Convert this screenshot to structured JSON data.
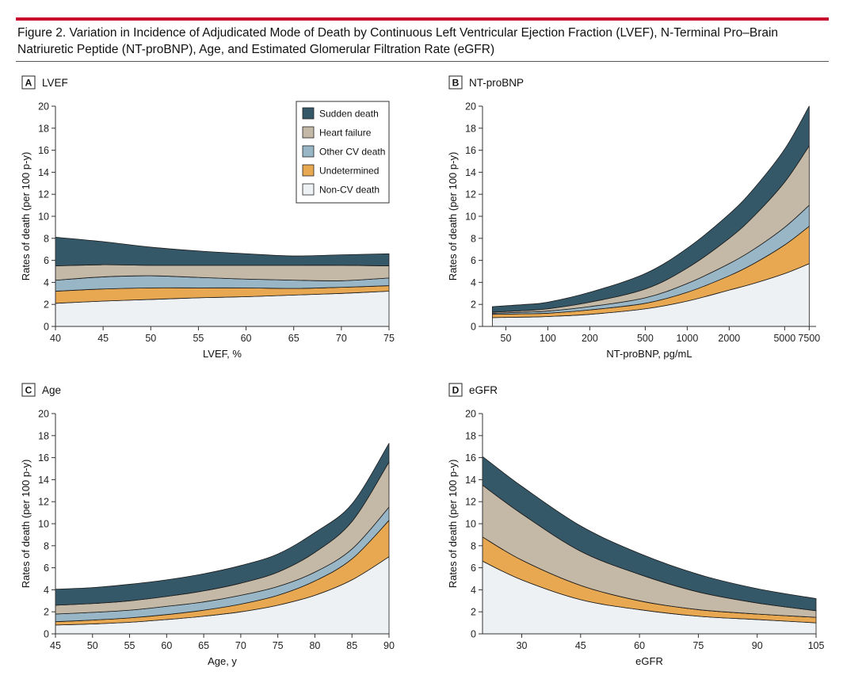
{
  "figure": {
    "caption": "Figure 2. Variation in Incidence of Adjudicated Mode of Death by Continuous Left Ventricular Ejection Fraction (LVEF), N-Terminal Pro–Brain Natriuretic Peptide (NT-proBNP), Age, and Estimated Glomerular Filtration Rate (eGFR)",
    "accent_color": "#c8102e"
  },
  "legend": [
    {
      "label": "Sudden death",
      "color": "#355868"
    },
    {
      "label": "Heart failure",
      "color": "#c4b8a6"
    },
    {
      "label": "Other CV death",
      "color": "#98b6c6"
    },
    {
      "label": "Undetermined",
      "color": "#e8a851"
    },
    {
      "label": "Non-CV death",
      "color": "#eef1f4"
    }
  ],
  "chart_data": [
    {
      "type": "area",
      "panel_letter": "A",
      "title": "LVEF",
      "xlabel": "LVEF, %",
      "ylabel": "Rates of death (per 100 p-y)",
      "xlim": [
        40,
        75
      ],
      "ylim": [
        0,
        20
      ],
      "xticks": [
        40,
        45,
        50,
        55,
        60,
        65,
        70,
        75
      ],
      "yticks": [
        0,
        2,
        4,
        6,
        8,
        10,
        12,
        14,
        16,
        18,
        20
      ],
      "x": [
        40,
        45,
        50,
        55,
        60,
        65,
        70,
        75
      ],
      "series": [
        {
          "name": "Non-CV death",
          "values": [
            2.1,
            2.3,
            2.45,
            2.6,
            2.7,
            2.85,
            3.0,
            3.2
          ]
        },
        {
          "name": "Undetermined",
          "values": [
            1.1,
            1.1,
            1.05,
            0.9,
            0.8,
            0.6,
            0.55,
            0.5
          ]
        },
        {
          "name": "Other CV death",
          "values": [
            1.0,
            1.1,
            1.1,
            0.95,
            0.8,
            0.75,
            0.6,
            0.7
          ]
        },
        {
          "name": "Heart failure",
          "values": [
            1.3,
            1.1,
            0.95,
            1.1,
            1.25,
            1.35,
            1.4,
            1.1
          ]
        },
        {
          "name": "Sudden death",
          "values": [
            2.6,
            2.1,
            1.65,
            1.3,
            1.05,
            0.85,
            0.95,
            1.1
          ]
        }
      ]
    },
    {
      "type": "area",
      "panel_letter": "B",
      "title": "NT-proBNP",
      "xlabel": "NT-proBNP, pg/mL",
      "ylabel": "Rates of death (per 100 p-y)",
      "xscale": "log",
      "xlim": [
        34,
        8400
      ],
      "ylim": [
        0,
        20
      ],
      "xticks": [
        50,
        100,
        200,
        500,
        1000,
        2000,
        5000,
        7500
      ],
      "yticks": [
        0,
        2,
        4,
        6,
        8,
        10,
        12,
        14,
        16,
        18,
        20
      ],
      "x": [
        40,
        70,
        100,
        200,
        500,
        1000,
        2000,
        3000,
        5000,
        7500
      ],
      "series": [
        {
          "name": "Non-CV death",
          "values": [
            0.8,
            0.85,
            0.9,
            1.1,
            1.6,
            2.3,
            3.3,
            3.9,
            4.8,
            5.7
          ]
        },
        {
          "name": "Undetermined",
          "values": [
            0.3,
            0.3,
            0.3,
            0.4,
            0.5,
            0.8,
            1.3,
            1.8,
            2.6,
            3.4
          ]
        },
        {
          "name": "Other CV death",
          "values": [
            0.1,
            0.15,
            0.2,
            0.3,
            0.5,
            0.8,
            1.1,
            1.3,
            1.6,
            1.9
          ]
        },
        {
          "name": "Heart failure",
          "values": [
            0.1,
            0.15,
            0.2,
            0.4,
            0.8,
            1.4,
            2.3,
            3.0,
            4.1,
            5.4
          ]
        },
        {
          "name": "Sudden death",
          "values": [
            0.5,
            0.55,
            0.6,
            0.9,
            1.4,
            1.8,
            2.2,
            2.5,
            3.0,
            3.6
          ]
        }
      ]
    },
    {
      "type": "area",
      "panel_letter": "C",
      "title": "Age",
      "xlabel": "Age, y",
      "ylabel": "Rates of death (per 100 p-y)",
      "xlim": [
        45,
        90
      ],
      "ylim": [
        0,
        20
      ],
      "xticks": [
        45,
        50,
        55,
        60,
        65,
        70,
        75,
        80,
        85,
        90
      ],
      "yticks": [
        0,
        2,
        4,
        6,
        8,
        10,
        12,
        14,
        16,
        18,
        20
      ],
      "x": [
        45,
        50,
        55,
        60,
        65,
        70,
        75,
        80,
        85,
        90
      ],
      "series": [
        {
          "name": "Non-CV death",
          "values": [
            0.8,
            0.9,
            1.05,
            1.3,
            1.6,
            2.0,
            2.6,
            3.5,
            4.9,
            7.0
          ]
        },
        {
          "name": "Undetermined",
          "values": [
            0.3,
            0.35,
            0.4,
            0.45,
            0.55,
            0.7,
            0.9,
            1.3,
            1.9,
            3.3
          ]
        },
        {
          "name": "Other CV death",
          "values": [
            0.7,
            0.7,
            0.7,
            0.75,
            0.75,
            0.8,
            0.8,
            0.8,
            0.9,
            1.2
          ]
        },
        {
          "name": "Heart failure",
          "values": [
            0.8,
            0.8,
            0.85,
            0.9,
            1.0,
            1.1,
            1.3,
            1.8,
            2.5,
            4.1
          ]
        },
        {
          "name": "Sudden death",
          "values": [
            1.45,
            1.45,
            1.5,
            1.5,
            1.55,
            1.6,
            1.65,
            1.8,
            1.6,
            1.7
          ]
        }
      ]
    },
    {
      "type": "area",
      "panel_letter": "D",
      "title": "eGFR",
      "xlabel": "eGFR",
      "ylabel": "Rates of death (per 100 p-y)",
      "xlim": [
        20,
        105
      ],
      "ylim": [
        0,
        20
      ],
      "xticks": [
        30,
        45,
        60,
        75,
        90,
        105
      ],
      "yticks": [
        0,
        2,
        4,
        6,
        8,
        10,
        12,
        14,
        16,
        18,
        20
      ],
      "x": [
        20,
        30,
        45,
        60,
        75,
        90,
        105
      ],
      "series": [
        {
          "name": "Non-CV death",
          "values": [
            6.6,
            4.9,
            3.1,
            2.2,
            1.6,
            1.3,
            1.0
          ]
        },
        {
          "name": "Undetermined",
          "values": [
            2.2,
            1.8,
            1.3,
            0.8,
            0.6,
            0.5,
            0.5
          ]
        },
        {
          "name": "Other CV death",
          "values": [
            0.0,
            0.0,
            0.0,
            0.0,
            0.0,
            0.0,
            0.0
          ]
        },
        {
          "name": "Heart failure",
          "values": [
            4.7,
            4.2,
            3.1,
            2.4,
            1.6,
            1.0,
            0.6
          ]
        },
        {
          "name": "Sudden death",
          "values": [
            2.6,
            2.5,
            2.3,
            1.9,
            1.6,
            1.3,
            1.1
          ]
        }
      ]
    }
  ]
}
